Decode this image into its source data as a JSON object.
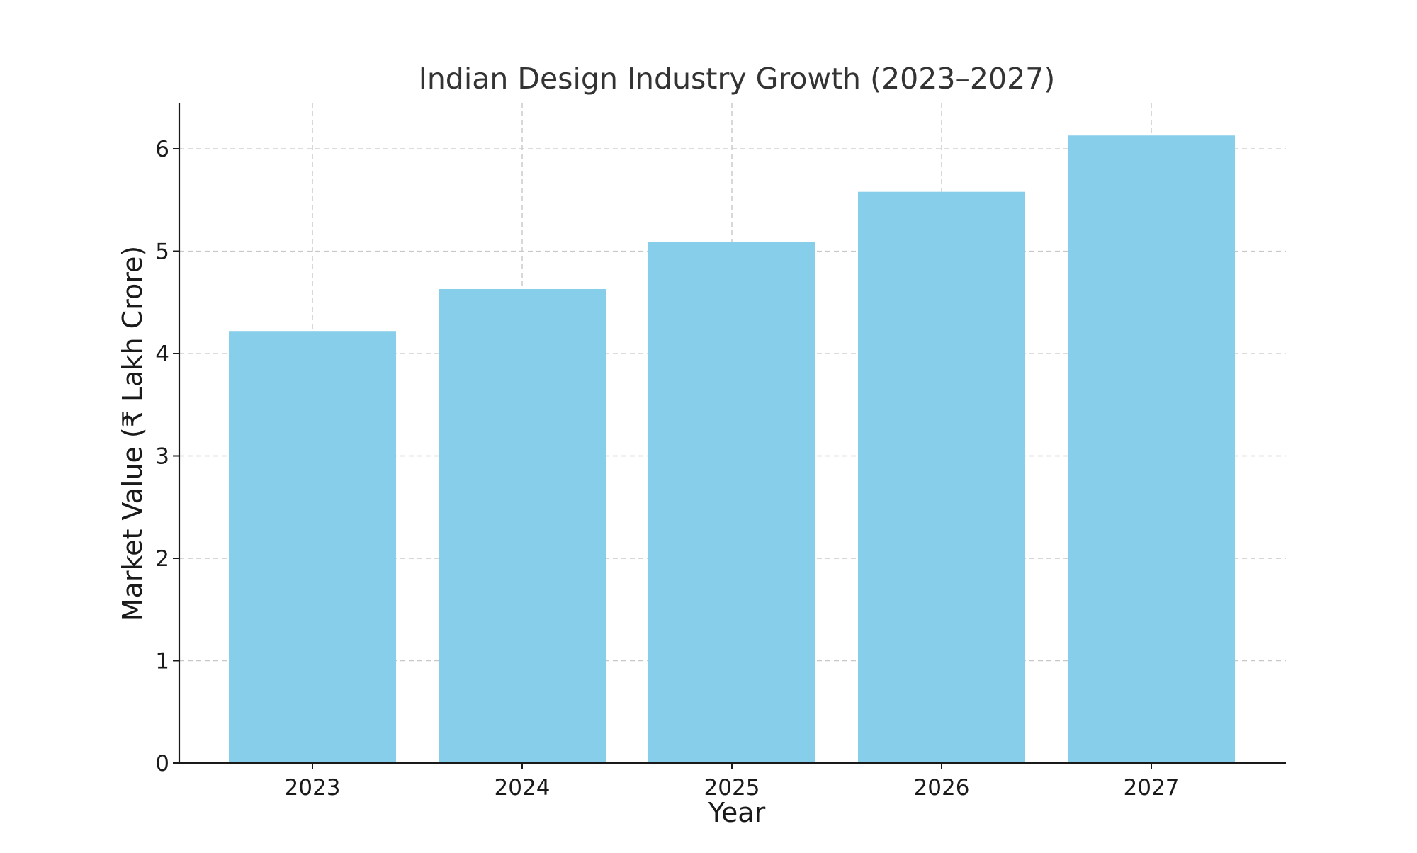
{
  "chart_data": {
    "type": "bar",
    "title": "Indian Design Industry Growth (2023–2027)",
    "xlabel": "Year",
    "ylabel": "Market Value (₹ Lakh Crore)",
    "categories": [
      "2023",
      "2024",
      "2025",
      "2026",
      "2027"
    ],
    "values": [
      4.22,
      4.63,
      5.09,
      5.58,
      6.13
    ],
    "ylim": [
      0,
      6.45
    ],
    "yticks": [
      0,
      1,
      2,
      3,
      4,
      5,
      6
    ],
    "grid": true,
    "bar_color": "#87ceeb"
  }
}
